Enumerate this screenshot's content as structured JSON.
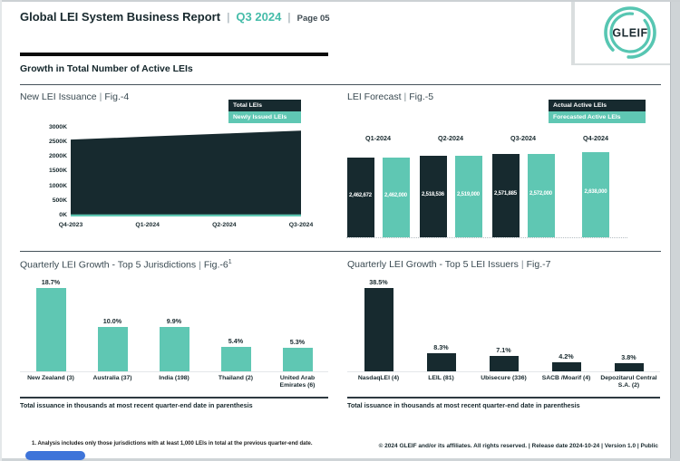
{
  "ui": {
    "pipe": "|"
  },
  "header": {
    "title": "Global LEI System Business Report",
    "period": "Q3 2024",
    "page_label": "Page 05"
  },
  "logo": {
    "text": "GLEIF"
  },
  "section": {
    "title": "Growth in Total Number of Active LEIs"
  },
  "colors": {
    "dark": "#172A2F",
    "teal": "#5FC7B3",
    "logo_teal": "#57C6B2",
    "header_accent": "#45BCA9",
    "blue_pill": "#3E74D9"
  },
  "chart_data": [
    {
      "id": "fig4",
      "type": "area",
      "title": "New LEI Issuance",
      "figure": "Fig.-4",
      "x": [
        "Q4-2023",
        "Q1-2024",
        "Q2-2024",
        "Q3-2024"
      ],
      "series": [
        {
          "name": "Total LEIs",
          "color_key": "dark",
          "values_K": [
            2600,
            2700,
            2800,
            2900
          ]
        },
        {
          "name": "Newly Issued LEIs",
          "color_key": "teal",
          "values_K": [
            70,
            70,
            70,
            70
          ]
        }
      ],
      "y_ticks": [
        "3000K",
        "2500K",
        "2000K",
        "1500K",
        "1000K",
        "500K",
        "0K"
      ],
      "ylim_K": [
        0,
        3000
      ],
      "grid": false,
      "legend_position": "top-right"
    },
    {
      "id": "fig5",
      "type": "bar",
      "title": "LEI Forecast",
      "figure": "Fig.-5",
      "categories": [
        "Q1-2024",
        "Q2-2024",
        "Q3-2024",
        "Q4-2024"
      ],
      "series": [
        {
          "name": "Actual Active LEIs",
          "color_key": "dark",
          "values": [
            2462672,
            2518536,
            2571885,
            null
          ],
          "labels": [
            "2,462,672",
            "2,518,536",
            "2,571,885",
            null
          ]
        },
        {
          "name": "Forecasted Active LEIs",
          "color_key": "teal",
          "values": [
            2462000,
            2519000,
            2572000,
            2638000
          ],
          "labels": [
            "2,462,000",
            "2,519,000",
            "2,572,000",
            "2,638,000"
          ]
        }
      ],
      "grid": false,
      "legend_position": "top-right"
    },
    {
      "id": "fig6",
      "type": "bar",
      "title": "Quarterly LEI Growth - Top 5 Jurisdictions",
      "figure": "Fig.-6",
      "figure_superscript": "1",
      "categories": [
        "New Zealand (3)",
        "Australia (37)",
        "India (198)",
        "Thailand (2)",
        "United Arab Emirates (6)"
      ],
      "values_pct": [
        18.7,
        10.0,
        9.9,
        5.4,
        5.3
      ],
      "labels": [
        "18.7%",
        "10.0%",
        "9.9%",
        "5.4%",
        "5.3%"
      ],
      "bar_color_key": "teal",
      "note": "Total issuance in thousands at most recent quarter-end date in parenthesis"
    },
    {
      "id": "fig7",
      "type": "bar",
      "title": "Quarterly LEI Growth - Top 5 LEI Issuers",
      "figure": "Fig.-7",
      "categories": [
        "NasdaqLEI (4)",
        "LEIL (81)",
        "Ubisecure (336)",
        "SACB /Moarif (4)",
        "Depozitarul Central S.A. (2)"
      ],
      "values_pct": [
        38.5,
        8.3,
        7.1,
        4.2,
        3.8
      ],
      "labels": [
        "38.5%",
        "8.3%",
        "7.1%",
        "4.2%",
        "3.8%"
      ],
      "bar_color_key": "dark",
      "note": "Total issuance in thousands at most recent quarter-end date in parenthesis"
    }
  ],
  "footer": {
    "footnote": "1. Analysis includes only those jurisdictions with at least 1,000 LEIs in total at the previous quarter-end date.",
    "copyright": "© 2024 GLEIF and/or its affiliates. All rights reserved. | Release date 2024-10-24 | Version 1.0 | Public"
  }
}
